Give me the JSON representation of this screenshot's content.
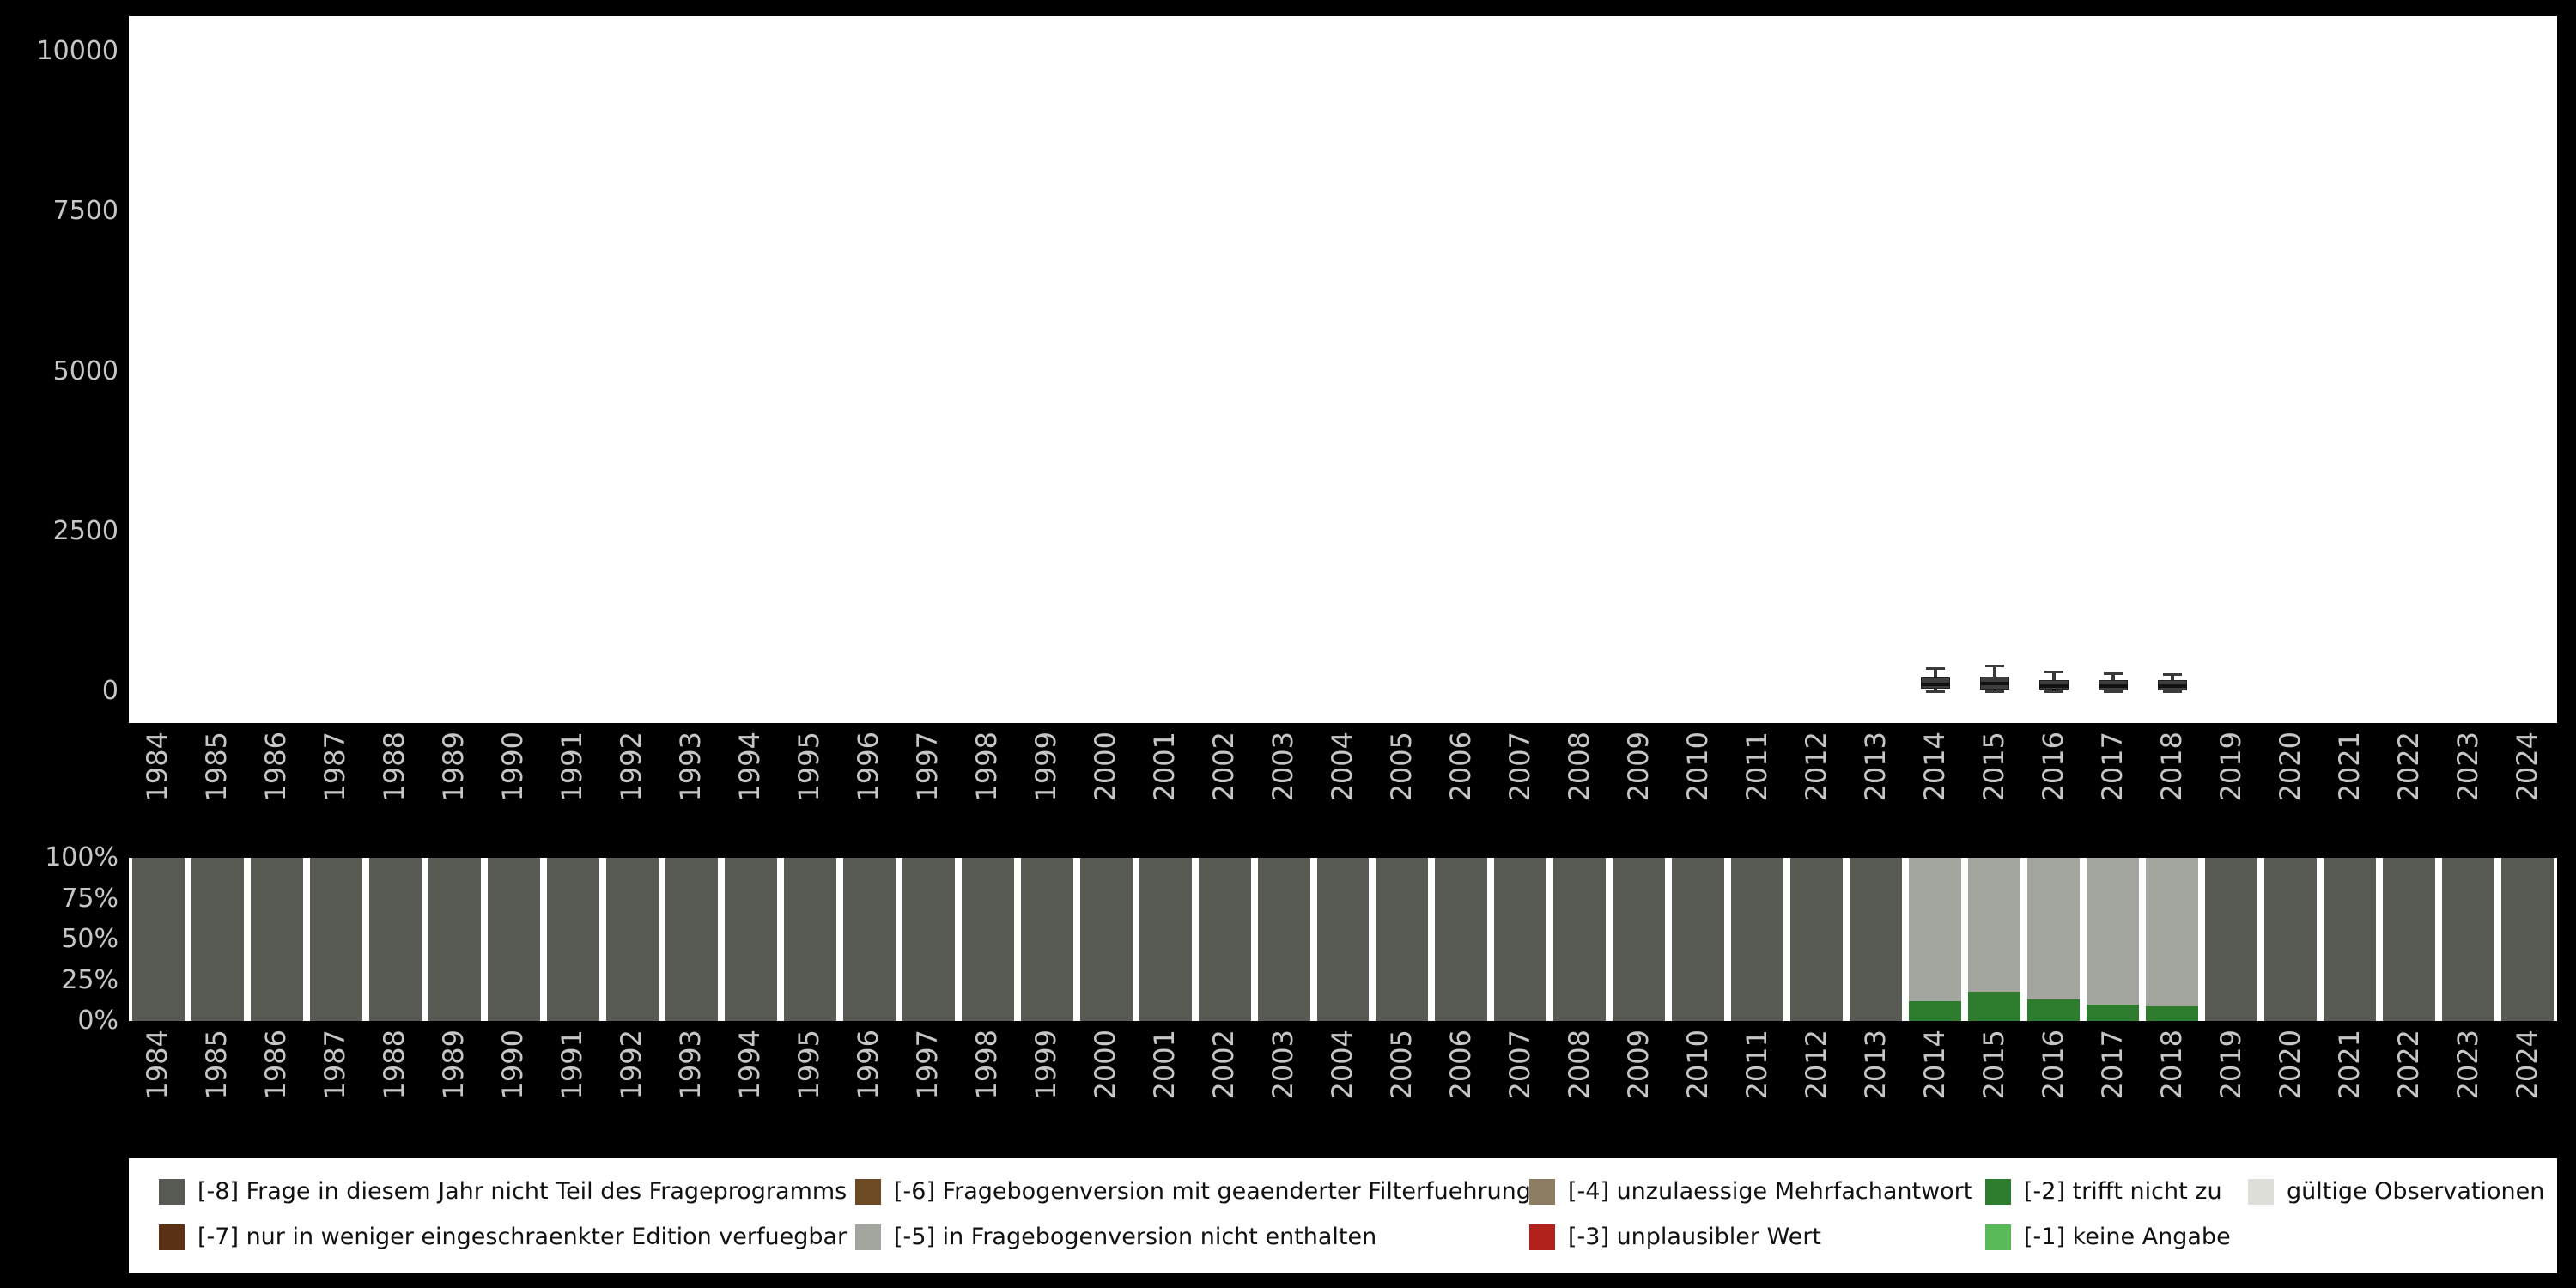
{
  "figure": {
    "background_color": "#000000",
    "panel_color": "#ffffff",
    "axis_text_color": "#C6C6C6"
  },
  "years": [
    "1984",
    "1985",
    "1986",
    "1987",
    "1988",
    "1989",
    "1990",
    "1991",
    "1992",
    "1993",
    "1994",
    "1995",
    "1996",
    "1997",
    "1998",
    "1999",
    "2000",
    "2001",
    "2002",
    "2003",
    "2004",
    "2005",
    "2006",
    "2007",
    "2008",
    "2009",
    "2010",
    "2011",
    "2012",
    "2013",
    "2014",
    "2015",
    "2016",
    "2017",
    "2018",
    "2019",
    "2020",
    "2021",
    "2022",
    "2023",
    "2024"
  ],
  "chart_data": [
    {
      "type": "boxplot",
      "title": "",
      "xlabel": "",
      "ylabel": "",
      "ylim": [
        0,
        10000
      ],
      "y_ticks": [
        0,
        2500,
        5000,
        7500,
        10000
      ],
      "y_tick_labels": [
        "0",
        "2500",
        "5000",
        "7500",
        "10000"
      ],
      "grid": false,
      "box_color": "#3E3E3E",
      "box_border_color": "#202020",
      "whisker_color": "#3A3A3A",
      "median_color": "#111111",
      "note": "only years 2014-2018 contain observations; all other years empty",
      "boxes": [
        {
          "year": 2014,
          "low": 0,
          "q1": 40,
          "median": 110,
          "q3": 210,
          "high": 350
        },
        {
          "year": 2015,
          "low": 0,
          "q1": 30,
          "median": 120,
          "q3": 230,
          "high": 400
        },
        {
          "year": 2016,
          "low": 0,
          "q1": 20,
          "median": 80,
          "q3": 180,
          "high": 300
        },
        {
          "year": 2017,
          "low": 0,
          "q1": 20,
          "median": 80,
          "q3": 170,
          "high": 280
        },
        {
          "year": 2018,
          "low": 0,
          "q1": 20,
          "median": 75,
          "q3": 170,
          "high": 260
        }
      ]
    },
    {
      "type": "bar",
      "stacked": true,
      "unit": "percent",
      "title": "",
      "xlabel": "",
      "ylabel": "",
      "ylim": [
        0,
        100
      ],
      "y_ticks": [
        100,
        75,
        50,
        25,
        0
      ],
      "y_tick_labels": [
        "100%",
        "75%",
        "50%",
        "25%",
        "0%"
      ],
      "stack_order": "bottom_to_top",
      "series": [
        {
          "name": "[-2] trifft nicht zu",
          "key": "-2",
          "color": "#2E7D2E",
          "values": [
            0,
            0,
            0,
            0,
            0,
            0,
            0,
            0,
            0,
            0,
            0,
            0,
            0,
            0,
            0,
            0,
            0,
            0,
            0,
            0,
            0,
            0,
            0,
            0,
            0,
            0,
            0,
            0,
            0,
            0,
            12,
            18,
            13,
            10,
            9,
            0,
            0,
            0,
            0,
            0,
            0
          ]
        },
        {
          "name": "[-5] in Fragebogenversion nicht enthalten",
          "key": "-5",
          "color": "#A3A69E",
          "values": [
            0,
            0,
            0,
            0,
            0,
            0,
            0,
            0,
            0,
            0,
            0,
            0,
            0,
            0,
            0,
            0,
            0,
            0,
            0,
            0,
            0,
            0,
            0,
            0,
            0,
            0,
            0,
            0,
            0,
            0,
            88,
            82,
            87,
            90,
            91,
            0,
            0,
            0,
            0,
            0,
            0
          ]
        },
        {
          "name": "[-8] Frage in diesem Jahr nicht Teil des Frageprogramms",
          "key": "-8",
          "color": "#575B53",
          "values": [
            100,
            100,
            100,
            100,
            100,
            100,
            100,
            100,
            100,
            100,
            100,
            100,
            100,
            100,
            100,
            100,
            100,
            100,
            100,
            100,
            100,
            100,
            100,
            100,
            100,
            100,
            100,
            100,
            100,
            100,
            0,
            0,
            0,
            0,
            0,
            100,
            100,
            100,
            100,
            100,
            100
          ]
        }
      ]
    }
  ],
  "legend": {
    "items": [
      {
        "label": "[-8] Frage in diesem Jahr nicht Teil des Frageprogramms",
        "color": "#575B53",
        "col": 0,
        "row": 0
      },
      {
        "label": "[-7] nur in weniger eingeschraenkter Edition verfuegbar",
        "color": "#5B3015",
        "col": 0,
        "row": 1
      },
      {
        "label": "[-6] Fragebogenversion mit geaenderter Filterfuehrung",
        "color": "#6B4A24",
        "col": 1,
        "row": 0
      },
      {
        "label": "[-5] in Fragebogenversion nicht enthalten",
        "color": "#A3A69E",
        "col": 1,
        "row": 1
      },
      {
        "label": "[-4] unzulaessige Mehrfachantwort",
        "color": "#8D7D62",
        "col": 2,
        "row": 0
      },
      {
        "label": "[-3] unplausibler Wert",
        "color": "#B2221D",
        "col": 2,
        "row": 1
      },
      {
        "label": "[-2] trifft nicht zu",
        "color": "#2E7D2E",
        "col": 3,
        "row": 0
      },
      {
        "label": "[-1] keine Angabe",
        "color": "#58B958",
        "col": 3,
        "row": 1
      },
      {
        "label": "gültige Observationen",
        "color": "#DEDED8",
        "col": 4,
        "row": 0
      }
    ]
  }
}
